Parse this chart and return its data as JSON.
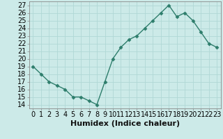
{
  "x": [
    0,
    1,
    2,
    3,
    4,
    5,
    6,
    7,
    8,
    9,
    10,
    11,
    12,
    13,
    14,
    15,
    16,
    17,
    18,
    19,
    20,
    21,
    22,
    23
  ],
  "y": [
    19,
    18,
    17,
    16.5,
    16,
    15,
    15,
    14.5,
    14,
    17,
    20,
    21.5,
    22.5,
    23,
    24,
    25,
    26,
    27,
    25.5,
    26,
    25,
    23.5,
    22,
    21.5
  ],
  "line_color": "#2d7d6b",
  "marker": "D",
  "marker_size": 2.5,
  "bg_color": "#cceae8",
  "grid_color": "#b0d8d5",
  "xlabel": "Humidex (Indice chaleur)",
  "xlim": [
    -0.5,
    23.5
  ],
  "ylim": [
    13.5,
    27.5
  ],
  "yticks": [
    14,
    15,
    16,
    17,
    18,
    19,
    20,
    21,
    22,
    23,
    24,
    25,
    26,
    27
  ],
  "xtick_labels": [
    "0",
    "1",
    "2",
    "3",
    "4",
    "5",
    "6",
    "7",
    "8",
    "9",
    "10",
    "11",
    "12",
    "13",
    "14",
    "15",
    "16",
    "17",
    "18",
    "19",
    "20",
    "21",
    "22",
    "23"
  ],
  "xlabel_fontsize": 8,
  "tick_fontsize": 7,
  "line_width": 1.0
}
